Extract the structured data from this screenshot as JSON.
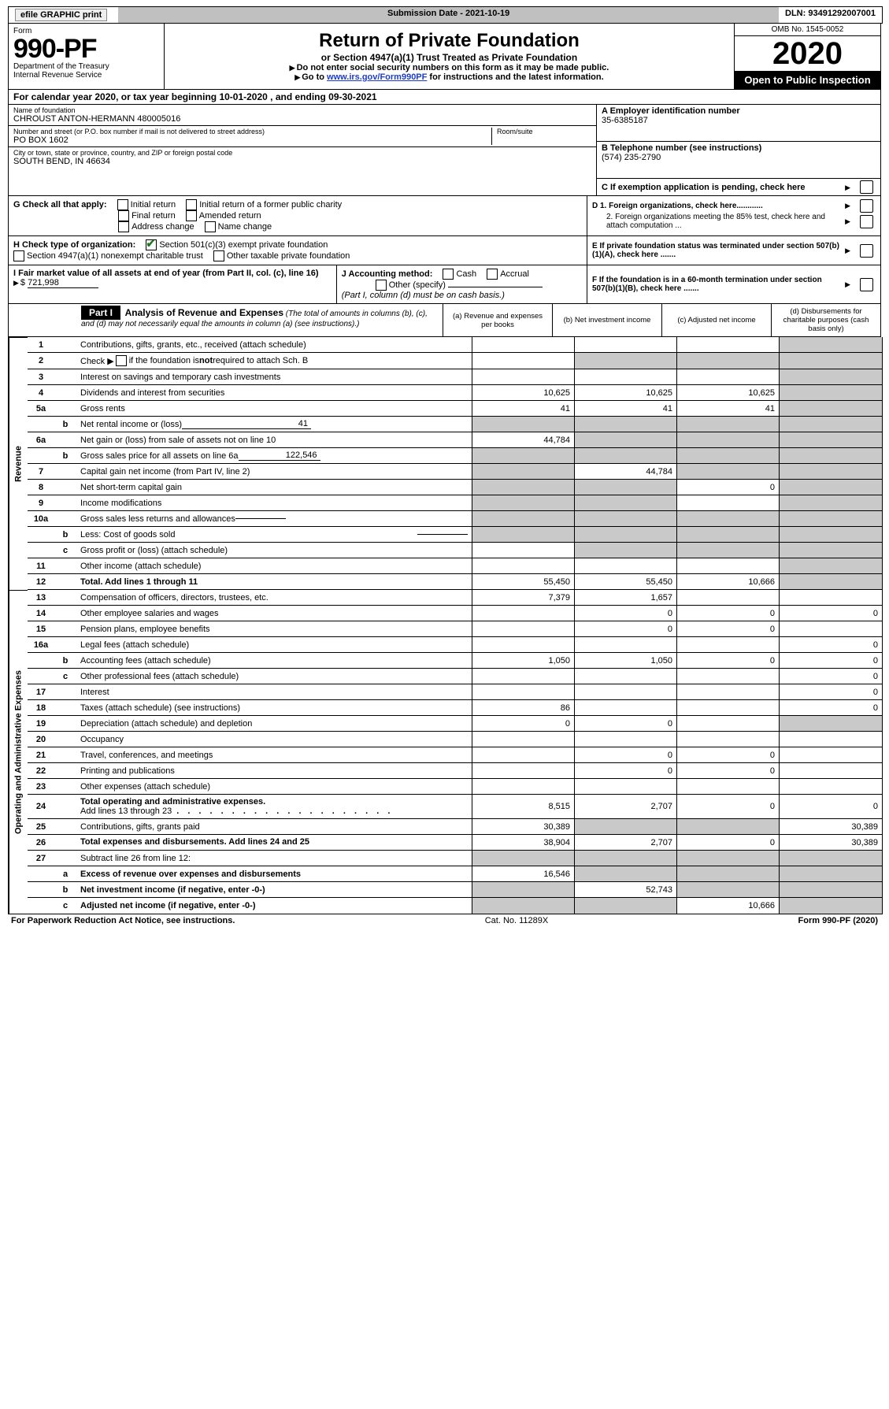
{
  "topbar": {
    "efile_label": "efile GRAPHIC print",
    "submission": "Submission Date - 2021-10-19",
    "dln": "DLN: 93491292007001"
  },
  "header": {
    "form_word": "Form",
    "form_no": "990-PF",
    "dept": "Department of the Treasury",
    "irs": "Internal Revenue Service",
    "title": "Return of Private Foundation",
    "subtitle": "or Section 4947(a)(1) Trust Treated as Private Foundation",
    "instr1": "Do not enter social security numbers on this form as it may be made public.",
    "instr2_pre": "Go to ",
    "instr2_link": "www.irs.gov/Form990PF",
    "instr2_post": " for instructions and the latest information.",
    "omb": "OMB No. 1545-0052",
    "year": "2020",
    "open": "Open to Public Inspection"
  },
  "calendar": "For calendar year 2020, or tax year beginning 10-01-2020             , and ending 09-30-2021",
  "name": {
    "label": "Name of foundation",
    "value": "CHROUST ANTON-HERMANN 480005016"
  },
  "ein": {
    "label": "A Employer identification number",
    "value": "35-6385187"
  },
  "addr": {
    "label": "Number and street (or P.O. box number if mail is not delivered to street address)",
    "room_label": "Room/suite",
    "value": "PO BOX 1602"
  },
  "phone": {
    "label": "B Telephone number (see instructions)",
    "value": "(574) 235-2790"
  },
  "city": {
    "label": "City or town, state or province, country, and ZIP or foreign postal code",
    "value": "SOUTH BEND, IN  46634"
  },
  "exemptC": "C If exemption application is pending, check here",
  "sectionG_label": "G Check all that apply:",
  "checks": {
    "initial": "Initial return",
    "initial_former": "Initial return of a former public charity",
    "final": "Final return",
    "amended": "Amended return",
    "address": "Address change",
    "name": "Name change"
  },
  "sectionD": {
    "d1": "D 1. Foreign organizations, check here............",
    "d2": "2. Foreign organizations meeting the 85% test, check here and attach computation ..."
  },
  "sectionH": {
    "label": "H Check type of organization:",
    "opt1": "Section 501(c)(3) exempt private foundation",
    "opt2": "Section 4947(a)(1) nonexempt charitable trust",
    "opt3": "Other taxable private foundation"
  },
  "sectionE": "E If private foundation status was terminated under section 507(b)(1)(A), check here .......",
  "sectionI": {
    "label": "I Fair market value of all assets at end of year (from Part II, col. (c), line 16)",
    "value": "721,998"
  },
  "sectionJ": {
    "label": "J Accounting method:",
    "cash": "Cash",
    "accrual": "Accrual",
    "other": "Other (specify)",
    "note": "(Part I, column (d) must be on cash basis.)"
  },
  "sectionF": "F If the foundation is in a 60-month termination under section 507(b)(1)(B), check here .......",
  "part1": {
    "title": "Part I",
    "heading": "Analysis of Revenue and Expenses",
    "sub": "(The total of amounts in columns (b), (c), and (d) may not necessarily equal the amounts in column (a) (see instructions).)",
    "col_a": "(a)   Revenue and expenses per books",
    "col_b": "(b)  Net investment income",
    "col_c": "(c)  Adjusted net income",
    "col_d": "(d)  Disbursements for charitable purposes (cash basis only)"
  },
  "rev_label": "Revenue",
  "exp_label": "Operating and Administrative Expenses",
  "rows": {
    "r1": {
      "n": "1",
      "d": "Contributions, gifts, grants, etc., received (attach schedule)"
    },
    "r2": {
      "n": "2",
      "d": "Check ▶",
      "d2": " if the foundation is not required to attach Sch. B"
    },
    "r3": {
      "n": "3",
      "d": "Interest on savings and temporary cash investments"
    },
    "r4": {
      "n": "4",
      "d": "Dividends and interest from securities",
      "a": "10,625",
      "b": "10,625",
      "c": "10,625"
    },
    "r5a": {
      "n": "5a",
      "d": "Gross rents",
      "a": "41",
      "b": "41",
      "c": "41"
    },
    "r5b": {
      "n": "b",
      "d": "Net rental income or (loss)",
      "u": "41"
    },
    "r6a": {
      "n": "6a",
      "d": "Net gain or (loss) from sale of assets not on line 10",
      "a": "44,784"
    },
    "r6b": {
      "n": "b",
      "d": "Gross sales price for all assets on line 6a",
      "u": "122,546"
    },
    "r7": {
      "n": "7",
      "d": "Capital gain net income (from Part IV, line 2)",
      "b": "44,784"
    },
    "r8": {
      "n": "8",
      "d": "Net short-term capital gain",
      "c": "0"
    },
    "r9": {
      "n": "9",
      "d": "Income modifications"
    },
    "r10a": {
      "n": "10a",
      "d": "Gross sales less returns and allowances"
    },
    "r10b": {
      "n": "b",
      "d": "Less: Cost of goods sold"
    },
    "r10c": {
      "n": "c",
      "d": "Gross profit or (loss) (attach schedule)"
    },
    "r11": {
      "n": "11",
      "d": "Other income (attach schedule)"
    },
    "r12": {
      "n": "12",
      "d": "Total. Add lines 1 through 11",
      "a": "55,450",
      "b": "55,450",
      "c": "10,666"
    },
    "r13": {
      "n": "13",
      "d": "Compensation of officers, directors, trustees, etc.",
      "a": "7,379",
      "b": "1,657"
    },
    "r14": {
      "n": "14",
      "d": "Other employee salaries and wages",
      "b": "0",
      "c": "0",
      "dd": "0"
    },
    "r15": {
      "n": "15",
      "d": "Pension plans, employee benefits",
      "b": "0",
      "c": "0"
    },
    "r16a": {
      "n": "16a",
      "d": "Legal fees (attach schedule)",
      "dd": "0"
    },
    "r16b": {
      "n": "b",
      "d": "Accounting fees (attach schedule)",
      "a": "1,050",
      "b": "1,050",
      "c": "0",
      "dd": "0"
    },
    "r16c": {
      "n": "c",
      "d": "Other professional fees (attach schedule)",
      "dd": "0"
    },
    "r17": {
      "n": "17",
      "d": "Interest",
      "dd": "0"
    },
    "r18": {
      "n": "18",
      "d": "Taxes (attach schedule) (see instructions)",
      "a": "86",
      "dd": "0"
    },
    "r19": {
      "n": "19",
      "d": "Depreciation (attach schedule) and depletion",
      "a": "0",
      "b": "0"
    },
    "r20": {
      "n": "20",
      "d": "Occupancy"
    },
    "r21": {
      "n": "21",
      "d": "Travel, conferences, and meetings",
      "b": "0",
      "c": "0"
    },
    "r22": {
      "n": "22",
      "d": "Printing and publications",
      "b": "0",
      "c": "0"
    },
    "r23": {
      "n": "23",
      "d": "Other expenses (attach schedule)"
    },
    "r24": {
      "n": "24",
      "d": "Total operating and administrative expenses.",
      "d2": "Add lines 13 through 23",
      "a": "8,515",
      "b": "2,707",
      "c": "0",
      "dd": "0"
    },
    "r25": {
      "n": "25",
      "d": "Contributions, gifts, grants paid",
      "a": "30,389",
      "dd": "30,389"
    },
    "r26": {
      "n": "26",
      "d": "Total expenses and disbursements. Add lines 24 and 25",
      "a": "38,904",
      "b": "2,707",
      "c": "0",
      "dd": "30,389"
    },
    "r27": {
      "n": "27",
      "d": "Subtract line 26 from line 12:"
    },
    "r27a": {
      "n": "a",
      "d": "Excess of revenue over expenses and disbursements",
      "a": "16,546"
    },
    "r27b": {
      "n": "b",
      "d": "Net investment income (if negative, enter -0-)",
      "b": "52,743"
    },
    "r27c": {
      "n": "c",
      "d": "Adjusted net income (if negative, enter -0-)",
      "c": "10,666"
    }
  },
  "footer": {
    "left": "For Paperwork Reduction Act Notice, see instructions.",
    "mid": "Cat. No. 11289X",
    "right": "Form 990-PF (2020)"
  }
}
